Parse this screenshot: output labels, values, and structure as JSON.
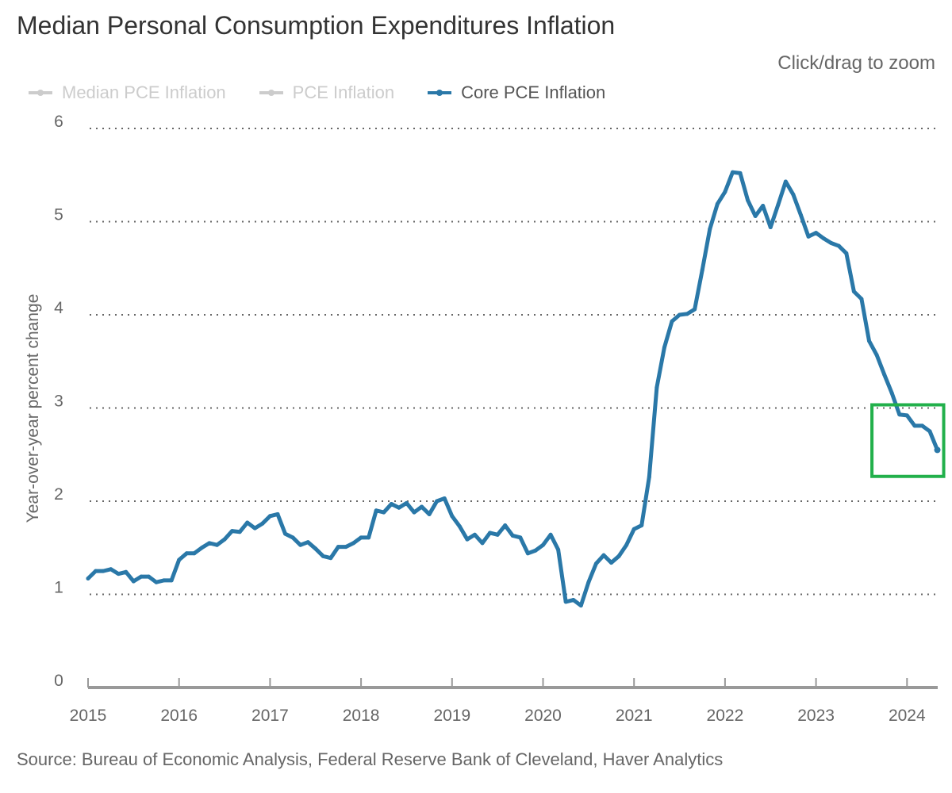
{
  "title": "Median Personal Consumption Expenditures Inflation",
  "zoom_hint": "Click/drag to zoom",
  "source": "Source: Bureau of Economic Analysis, Federal Reserve Bank of Cleveland, Haver Analytics",
  "legend": [
    {
      "label": "Median PCE Inflation",
      "visible": false,
      "color": "#cccccc"
    },
    {
      "label": "PCE Inflation",
      "visible": false,
      "color": "#cccccc"
    },
    {
      "label": "Core PCE Inflation",
      "visible": true,
      "color": "#2a78a8"
    }
  ],
  "highlight_box_color": "#22b04b",
  "chart_data": {
    "type": "line",
    "title": "Median Personal Consumption Expenditures Inflation",
    "xlabel": "",
    "ylabel": "Year-over-year percent change",
    "ylim": [
      0,
      6
    ],
    "yticks": [
      "0",
      "1",
      "2",
      "3",
      "4",
      "5",
      "6"
    ],
    "xticks": [
      "2015",
      "2016",
      "2017",
      "2018",
      "2019",
      "2020",
      "2021",
      "2022",
      "2023",
      "2024"
    ],
    "xlim_start": "2015-01",
    "frequency": "monthly",
    "grid": "horizontal dotted",
    "legend_position": "top-left",
    "highlight_region": {
      "x_start": "2023-09",
      "x_end": "2024-05",
      "y_range": [
        2.3,
        3.0
      ]
    },
    "series": [
      {
        "name": "Core PCE Inflation",
        "color": "#2a78a8",
        "start": "2015-01",
        "values": [
          1.17,
          1.25,
          1.25,
          1.27,
          1.22,
          1.24,
          1.14,
          1.19,
          1.19,
          1.13,
          1.15,
          1.15,
          1.37,
          1.44,
          1.44,
          1.5,
          1.55,
          1.53,
          1.59,
          1.68,
          1.67,
          1.77,
          1.71,
          1.76,
          1.84,
          1.86,
          1.65,
          1.61,
          1.53,
          1.56,
          1.49,
          1.41,
          1.39,
          1.51,
          1.51,
          1.55,
          1.61,
          1.61,
          1.9,
          1.88,
          1.97,
          1.93,
          1.98,
          1.88,
          1.94,
          1.86,
          2.0,
          2.03,
          1.84,
          1.73,
          1.59,
          1.64,
          1.55,
          1.66,
          1.64,
          1.74,
          1.63,
          1.61,
          1.44,
          1.47,
          1.53,
          1.64,
          1.48,
          0.92,
          0.94,
          0.88,
          1.13,
          1.33,
          1.42,
          1.34,
          1.41,
          1.53,
          1.7,
          1.74,
          2.26,
          3.22,
          3.65,
          3.93,
          4.0,
          4.01,
          4.06,
          4.48,
          4.92,
          5.19,
          5.32,
          5.53,
          5.52,
          5.23,
          5.06,
          5.17,
          4.94,
          5.18,
          5.43,
          5.29,
          5.07,
          4.84,
          4.88,
          4.82,
          4.77,
          4.74,
          4.66,
          4.25,
          4.17,
          3.72,
          3.57,
          3.36,
          3.16,
          2.93,
          2.92,
          2.81,
          2.81,
          2.75,
          2.55
        ]
      }
    ]
  }
}
